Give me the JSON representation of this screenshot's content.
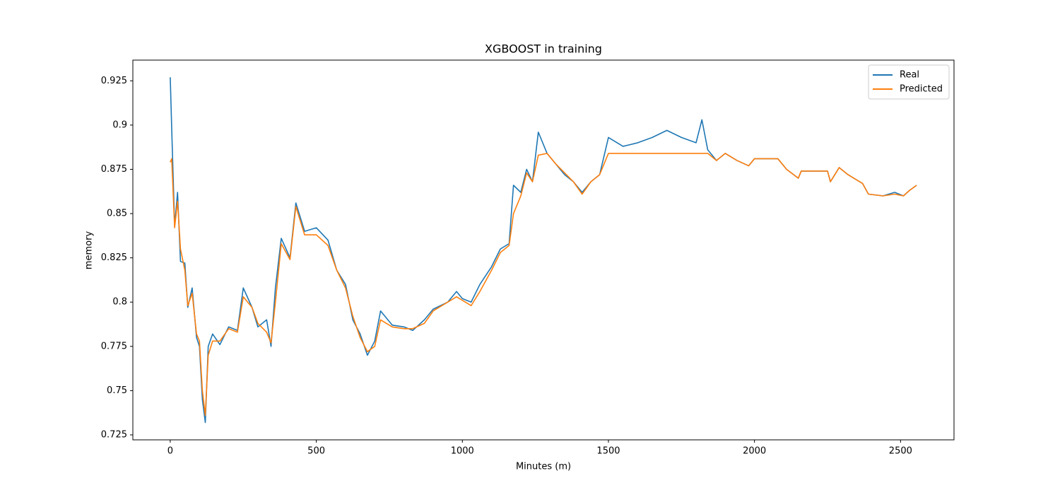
{
  "chart_data": {
    "type": "line",
    "title": "XGBOOST in training",
    "xlabel": "Minutes (m)",
    "ylabel": "memory",
    "x": [
      0,
      5,
      15,
      25,
      35,
      50,
      60,
      75,
      90,
      100,
      110,
      120,
      130,
      145,
      170,
      200,
      230,
      250,
      280,
      300,
      330,
      345,
      360,
      380,
      410,
      430,
      460,
      500,
      540,
      570,
      600,
      625,
      650,
      675,
      700,
      720,
      760,
      800,
      830,
      870,
      900,
      950,
      980,
      1000,
      1030,
      1060,
      1100,
      1130,
      1160,
      1175,
      1200,
      1220,
      1240,
      1260,
      1290,
      1320,
      1350,
      1380,
      1410,
      1440,
      1470,
      1500,
      1550,
      1600,
      1650,
      1700,
      1750,
      1800,
      1820,
      1840,
      1870,
      1900,
      1940,
      1980,
      2000,
      2050,
      2080,
      2110,
      2150,
      2160,
      2250,
      2260,
      2290,
      2320,
      2370,
      2390,
      2440,
      2480,
      2510,
      2530,
      2555
    ],
    "series": [
      {
        "name": "Real",
        "color": "#1f77b4",
        "values": [
          0.927,
          0.898,
          0.843,
          0.862,
          0.823,
          0.822,
          0.797,
          0.808,
          0.78,
          0.775,
          0.745,
          0.732,
          0.775,
          0.782,
          0.776,
          0.786,
          0.784,
          0.808,
          0.797,
          0.786,
          0.79,
          0.775,
          0.808,
          0.836,
          0.825,
          0.856,
          0.84,
          0.842,
          0.835,
          0.818,
          0.81,
          0.79,
          0.782,
          0.77,
          0.778,
          0.795,
          0.787,
          0.786,
          0.784,
          0.79,
          0.796,
          0.8,
          0.806,
          0.802,
          0.8,
          0.81,
          0.82,
          0.83,
          0.833,
          0.866,
          0.862,
          0.875,
          0.868,
          0.896,
          0.884,
          0.878,
          0.872,
          0.868,
          0.862,
          0.868,
          0.872,
          0.893,
          0.888,
          0.89,
          0.893,
          0.897,
          0.893,
          0.89,
          0.903,
          0.886,
          0.88,
          0.884,
          0.88,
          0.877,
          0.881,
          0.881,
          0.881,
          0.875,
          0.87,
          0.874,
          0.874,
          0.868,
          0.876,
          0.872,
          0.867,
          0.861,
          0.86,
          0.862,
          0.86,
          0.863,
          0.866
        ]
      },
      {
        "name": "Predicted",
        "color": "#ff7f0e",
        "values": [
          0.879,
          0.881,
          0.842,
          0.857,
          0.83,
          0.818,
          0.798,
          0.805,
          0.782,
          0.778,
          0.75,
          0.736,
          0.77,
          0.778,
          0.778,
          0.785,
          0.783,
          0.803,
          0.797,
          0.788,
          0.783,
          0.777,
          0.8,
          0.833,
          0.824,
          0.854,
          0.838,
          0.838,
          0.832,
          0.818,
          0.808,
          0.792,
          0.78,
          0.772,
          0.775,
          0.79,
          0.786,
          0.785,
          0.785,
          0.788,
          0.795,
          0.8,
          0.803,
          0.801,
          0.798,
          0.806,
          0.818,
          0.828,
          0.832,
          0.85,
          0.86,
          0.873,
          0.868,
          0.883,
          0.884,
          0.878,
          0.873,
          0.868,
          0.861,
          0.868,
          0.872,
          0.884,
          0.884,
          0.884,
          0.884,
          0.884,
          0.884,
          0.884,
          0.884,
          0.884,
          0.88,
          0.884,
          0.88,
          0.877,
          0.881,
          0.881,
          0.881,
          0.875,
          0.87,
          0.874,
          0.874,
          0.868,
          0.876,
          0.872,
          0.867,
          0.861,
          0.86,
          0.861,
          0.86,
          0.863,
          0.866
        ]
      }
    ],
    "xlim": [
      -128,
      2683
    ],
    "ylim": [
      0.7222,
      0.9367
    ],
    "xticks": [
      0,
      500,
      1000,
      1500,
      2000,
      2500
    ],
    "yticks": [
      0.725,
      0.75,
      0.775,
      0.8,
      0.825,
      0.85,
      0.875,
      0.9,
      0.925
    ],
    "legend": "upper right"
  }
}
